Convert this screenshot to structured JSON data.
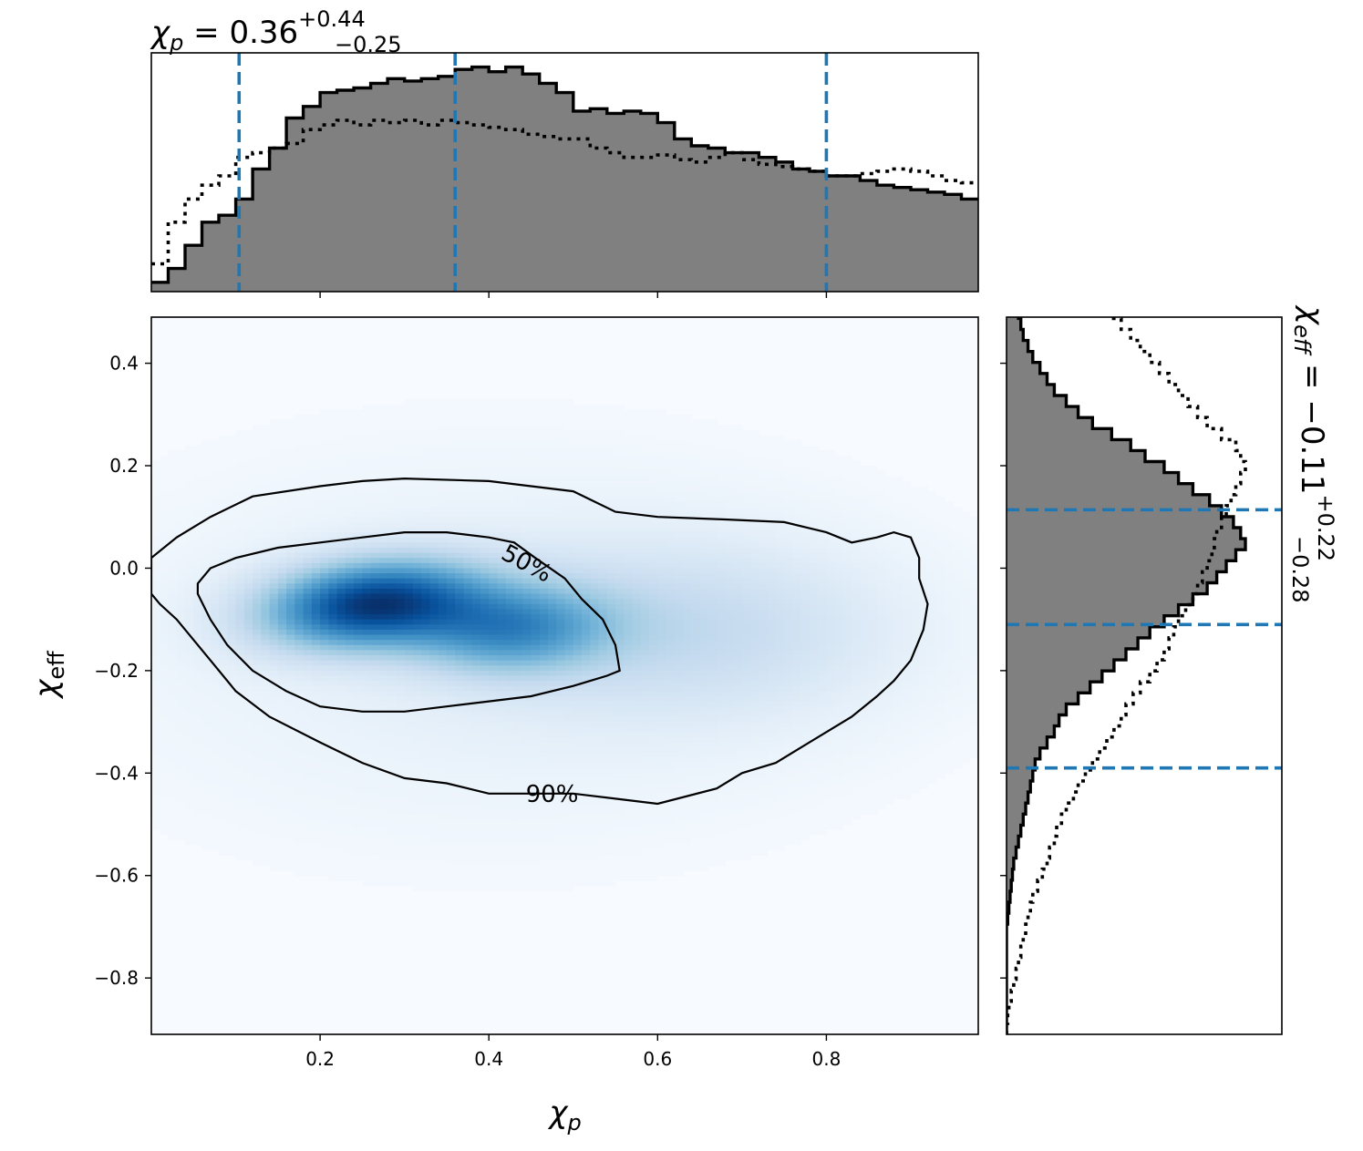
{
  "chart_data": {
    "type": "heatmap",
    "title": {
      "top": {
        "symbol": "χ",
        "sub": "p",
        "eq": " = ",
        "value": "0.36",
        "upper": "+0.44",
        "lower": "−0.25"
      },
      "right": {
        "symbol": "χ",
        "sub": "eff",
        "eq": " = ",
        "value": "−0.11",
        "upper": "+0.22",
        "lower": "−0.28"
      }
    },
    "xlabel": {
      "symbol": "χ",
      "sub": "p"
    },
    "ylabel": {
      "symbol": "χ",
      "sub": "eff"
    },
    "xlim": [
      0.0,
      0.98
    ],
    "ylim": [
      -0.91,
      0.49
    ],
    "xticks": [
      {
        "v": 0.2,
        "label": "0.2"
      },
      {
        "v": 0.4,
        "label": "0.4"
      },
      {
        "v": 0.6,
        "label": "0.6"
      },
      {
        "v": 0.8,
        "label": "0.8"
      }
    ],
    "yticks": [
      {
        "v": 0.4,
        "label": "0.4"
      },
      {
        "v": 0.2,
        "label": "0.2"
      },
      {
        "v": 0.0,
        "label": "0.0"
      },
      {
        "v": -0.2,
        "label": "−0.2"
      },
      {
        "v": -0.4,
        "label": "−0.4"
      },
      {
        "v": -0.6,
        "label": "−0.6"
      },
      {
        "v": -0.8,
        "label": "−0.8"
      }
    ],
    "colormap": [
      "#f7fbff",
      "#deebf7",
      "#c6dbef",
      "#9ecae1",
      "#6baed6",
      "#4292c6",
      "#2171b5",
      "#08519c",
      "#08306b"
    ],
    "density_components": [
      {
        "w": 1.0,
        "mx": 0.26,
        "my": -0.07,
        "sx": 0.09,
        "sy": 0.06,
        "rho": 0.2
      },
      {
        "w": 0.55,
        "mx": 0.43,
        "my": -0.12,
        "sx": 0.08,
        "sy": 0.06,
        "rho": 0.1
      },
      {
        "w": 0.22,
        "mx": 0.64,
        "my": -0.12,
        "sx": 0.17,
        "sy": 0.12,
        "rho": 0.0
      },
      {
        "w": 0.1,
        "mx": 0.4,
        "my": -0.15,
        "sx": 0.35,
        "sy": 0.28,
        "rho": 0.0
      }
    ],
    "contours": [
      {
        "label": "50%",
        "label_at": [
          0.445,
          0.01
        ],
        "label_angle": 28,
        "points": [
          [
            0.055,
            -0.03
          ],
          [
            0.07,
            0.0
          ],
          [
            0.1,
            0.02
          ],
          [
            0.15,
            0.04
          ],
          [
            0.2,
            0.05
          ],
          [
            0.25,
            0.06
          ],
          [
            0.3,
            0.07
          ],
          [
            0.35,
            0.07
          ],
          [
            0.4,
            0.06
          ],
          [
            0.43,
            0.05
          ],
          [
            0.455,
            0.02
          ],
          [
            0.49,
            -0.02
          ],
          [
            0.51,
            -0.06
          ],
          [
            0.535,
            -0.1
          ],
          [
            0.55,
            -0.15
          ],
          [
            0.555,
            -0.2
          ],
          [
            0.54,
            -0.21
          ],
          [
            0.5,
            -0.23
          ],
          [
            0.45,
            -0.25
          ],
          [
            0.4,
            -0.26
          ],
          [
            0.35,
            -0.27
          ],
          [
            0.3,
            -0.28
          ],
          [
            0.25,
            -0.28
          ],
          [
            0.2,
            -0.27
          ],
          [
            0.16,
            -0.24
          ],
          [
            0.12,
            -0.2
          ],
          [
            0.09,
            -0.15
          ],
          [
            0.07,
            -0.1
          ],
          [
            0.055,
            -0.05
          ],
          [
            0.055,
            -0.03
          ]
        ]
      },
      {
        "label": "90%",
        "label_at": [
          0.475,
          -0.44
        ],
        "label_angle": 0,
        "points": [
          [
            0.0,
            0.02
          ],
          [
            0.03,
            0.06
          ],
          [
            0.07,
            0.1
          ],
          [
            0.12,
            0.14
          ],
          [
            0.2,
            0.16
          ],
          [
            0.25,
            0.17
          ],
          [
            0.3,
            0.175
          ],
          [
            0.4,
            0.17
          ],
          [
            0.5,
            0.15
          ],
          [
            0.55,
            0.11
          ],
          [
            0.6,
            0.1
          ],
          [
            0.68,
            0.095
          ],
          [
            0.75,
            0.09
          ],
          [
            0.8,
            0.07
          ],
          [
            0.83,
            0.05
          ],
          [
            0.86,
            0.06
          ],
          [
            0.88,
            0.07
          ],
          [
            0.9,
            0.06
          ],
          [
            0.91,
            0.02
          ],
          [
            0.91,
            -0.02
          ],
          [
            0.92,
            -0.07
          ],
          [
            0.915,
            -0.12
          ],
          [
            0.9,
            -0.18
          ],
          [
            0.88,
            -0.22
          ],
          [
            0.86,
            -0.25
          ],
          [
            0.83,
            -0.29
          ],
          [
            0.8,
            -0.32
          ],
          [
            0.77,
            -0.35
          ],
          [
            0.74,
            -0.38
          ],
          [
            0.7,
            -0.4
          ],
          [
            0.67,
            -0.43
          ],
          [
            0.6,
            -0.46
          ],
          [
            0.55,
            -0.45
          ],
          [
            0.5,
            -0.44
          ],
          [
            0.45,
            -0.44
          ],
          [
            0.4,
            -0.44
          ],
          [
            0.35,
            -0.42
          ],
          [
            0.3,
            -0.41
          ],
          [
            0.25,
            -0.38
          ],
          [
            0.2,
            -0.34
          ],
          [
            0.14,
            -0.29
          ],
          [
            0.1,
            -0.24
          ],
          [
            0.07,
            -0.18
          ],
          [
            0.03,
            -0.1
          ],
          [
            0.01,
            -0.07
          ],
          [
            0.0,
            -0.05
          ]
        ]
      }
    ],
    "top_histogram": {
      "edges_start": 0.0,
      "bin_width": 0.02,
      "solid": [
        0.04,
        0.1,
        0.2,
        0.3,
        0.33,
        0.4,
        0.53,
        0.62,
        0.75,
        0.8,
        0.86,
        0.87,
        0.88,
        0.9,
        0.92,
        0.91,
        0.92,
        0.93,
        0.96,
        0.97,
        0.95,
        0.97,
        0.94,
        0.9,
        0.86,
        0.78,
        0.79,
        0.77,
        0.78,
        0.77,
        0.73,
        0.66,
        0.63,
        0.62,
        0.6,
        0.6,
        0.58,
        0.56,
        0.53,
        0.52,
        0.5,
        0.5,
        0.48,
        0.46,
        0.45,
        0.44,
        0.43,
        0.42,
        0.4,
        0.39,
        0.38,
        0.34,
        0.33,
        0.31,
        0.3,
        0.29,
        0.28,
        0.27,
        0.26,
        0.25,
        0.24,
        0.23,
        0.22,
        0.21,
        0.2,
        0.19,
        0.18,
        0.17,
        0.16,
        0.15,
        0.14,
        0.13,
        0.12,
        0.1,
        0.09,
        0.08,
        0.07,
        0.06,
        0.05,
        0.04,
        0.03,
        0.02,
        0.01,
        0.01,
        0.0,
        0.0,
        0.0,
        0.0,
        0.0,
        0.0,
        0.0,
        0.0,
        0.0,
        0.0,
        0.0,
        0.0,
        0.0,
        0.0,
        0.0
      ],
      "dotted": [
        0.12,
        0.3,
        0.4,
        0.46,
        0.5,
        0.58,
        0.6,
        0.62,
        0.64,
        0.7,
        0.72,
        0.74,
        0.72,
        0.74,
        0.73,
        0.74,
        0.72,
        0.74,
        0.73,
        0.72,
        0.71,
        0.7,
        0.68,
        0.67,
        0.66,
        0.66,
        0.62,
        0.6,
        0.58,
        0.58,
        0.59,
        0.57,
        0.56,
        0.58,
        0.6,
        0.57,
        0.55,
        0.54,
        0.53,
        0.52,
        0.5,
        0.5,
        0.51,
        0.52,
        0.53,
        0.52,
        0.5,
        0.48,
        0.47,
        0.46,
        0.46,
        0.45,
        0.45,
        0.44,
        0.43,
        0.42,
        0.42,
        0.41,
        0.41,
        0.4,
        0.4,
        0.38,
        0.37,
        0.36,
        0.35,
        0.34,
        0.33,
        0.32,
        0.31,
        0.3,
        0.29,
        0.28,
        0.27,
        0.26,
        0.25,
        0.24,
        0.22,
        0.2,
        0.18,
        0.16,
        0.14,
        0.12,
        0.1,
        0.08,
        0.07,
        0.06,
        0.05,
        0.04,
        0.03,
        0.02,
        0.02,
        0.01,
        0.01,
        0.0,
        0.0,
        0.0,
        0.0,
        0.0,
        0.0
      ],
      "quantile_lines": [
        0.104,
        0.36,
        0.8
      ],
      "ymax": 1.0
    },
    "right_histogram": {
      "edges_start": -0.91,
      "bin_width": 0.0215,
      "solid": [
        0.0,
        0.0,
        0.0,
        0.0,
        0.0,
        0.0,
        0.0,
        0.0,
        0.0,
        0.0,
        0.005,
        0.01,
        0.015,
        0.02,
        0.025,
        0.03,
        0.04,
        0.05,
        0.06,
        0.07,
        0.08,
        0.09,
        0.1,
        0.11,
        0.12,
        0.14,
        0.17,
        0.2,
        0.22,
        0.25,
        0.3,
        0.35,
        0.4,
        0.45,
        0.5,
        0.55,
        0.6,
        0.66,
        0.72,
        0.78,
        0.84,
        0.88,
        0.92,
        0.96,
        1.0,
        0.98,
        0.95,
        0.9,
        0.85,
        0.78,
        0.72,
        0.66,
        0.58,
        0.52,
        0.44,
        0.36,
        0.3,
        0.25,
        0.2,
        0.17,
        0.14,
        0.11,
        0.09,
        0.07,
        0.06,
        0.05,
        0.04,
        0.035,
        0.03,
        0.025,
        0.02,
        0.015,
        0.012,
        0.01,
        0.008,
        0.006,
        0.004,
        0.003,
        0.002,
        0.001,
        0.0,
        0.0,
        0.0,
        0.0
      ],
      "dotted": [
        0.0,
        0.005,
        0.01,
        0.02,
        0.03,
        0.04,
        0.05,
        0.06,
        0.07,
        0.08,
        0.09,
        0.1,
        0.11,
        0.13,
        0.15,
        0.17,
        0.18,
        0.2,
        0.21,
        0.23,
        0.25,
        0.28,
        0.3,
        0.33,
        0.36,
        0.39,
        0.42,
        0.45,
        0.48,
        0.5,
        0.53,
        0.56,
        0.6,
        0.63,
        0.66,
        0.68,
        0.7,
        0.72,
        0.75,
        0.78,
        0.8,
        0.82,
        0.84,
        0.86,
        0.87,
        0.88,
        0.9,
        0.92,
        0.94,
        0.96,
        0.98,
        1.0,
        0.98,
        0.96,
        0.9,
        0.84,
        0.8,
        0.76,
        0.72,
        0.68,
        0.64,
        0.6,
        0.56,
        0.52,
        0.48,
        0.44,
        0.4,
        0.36,
        0.33,
        0.3,
        0.27,
        0.24,
        0.22,
        0.2,
        0.18,
        0.16,
        0.14,
        0.12,
        0.1
      ],
      "quantile_lines": [
        -0.39,
        -0.11,
        0.114
      ],
      "xmax": 1.0
    },
    "grid": false,
    "legend": "none"
  },
  "colors": {
    "fill": "#808080",
    "edge": "#000000",
    "quantile": "#1f77b4"
  }
}
